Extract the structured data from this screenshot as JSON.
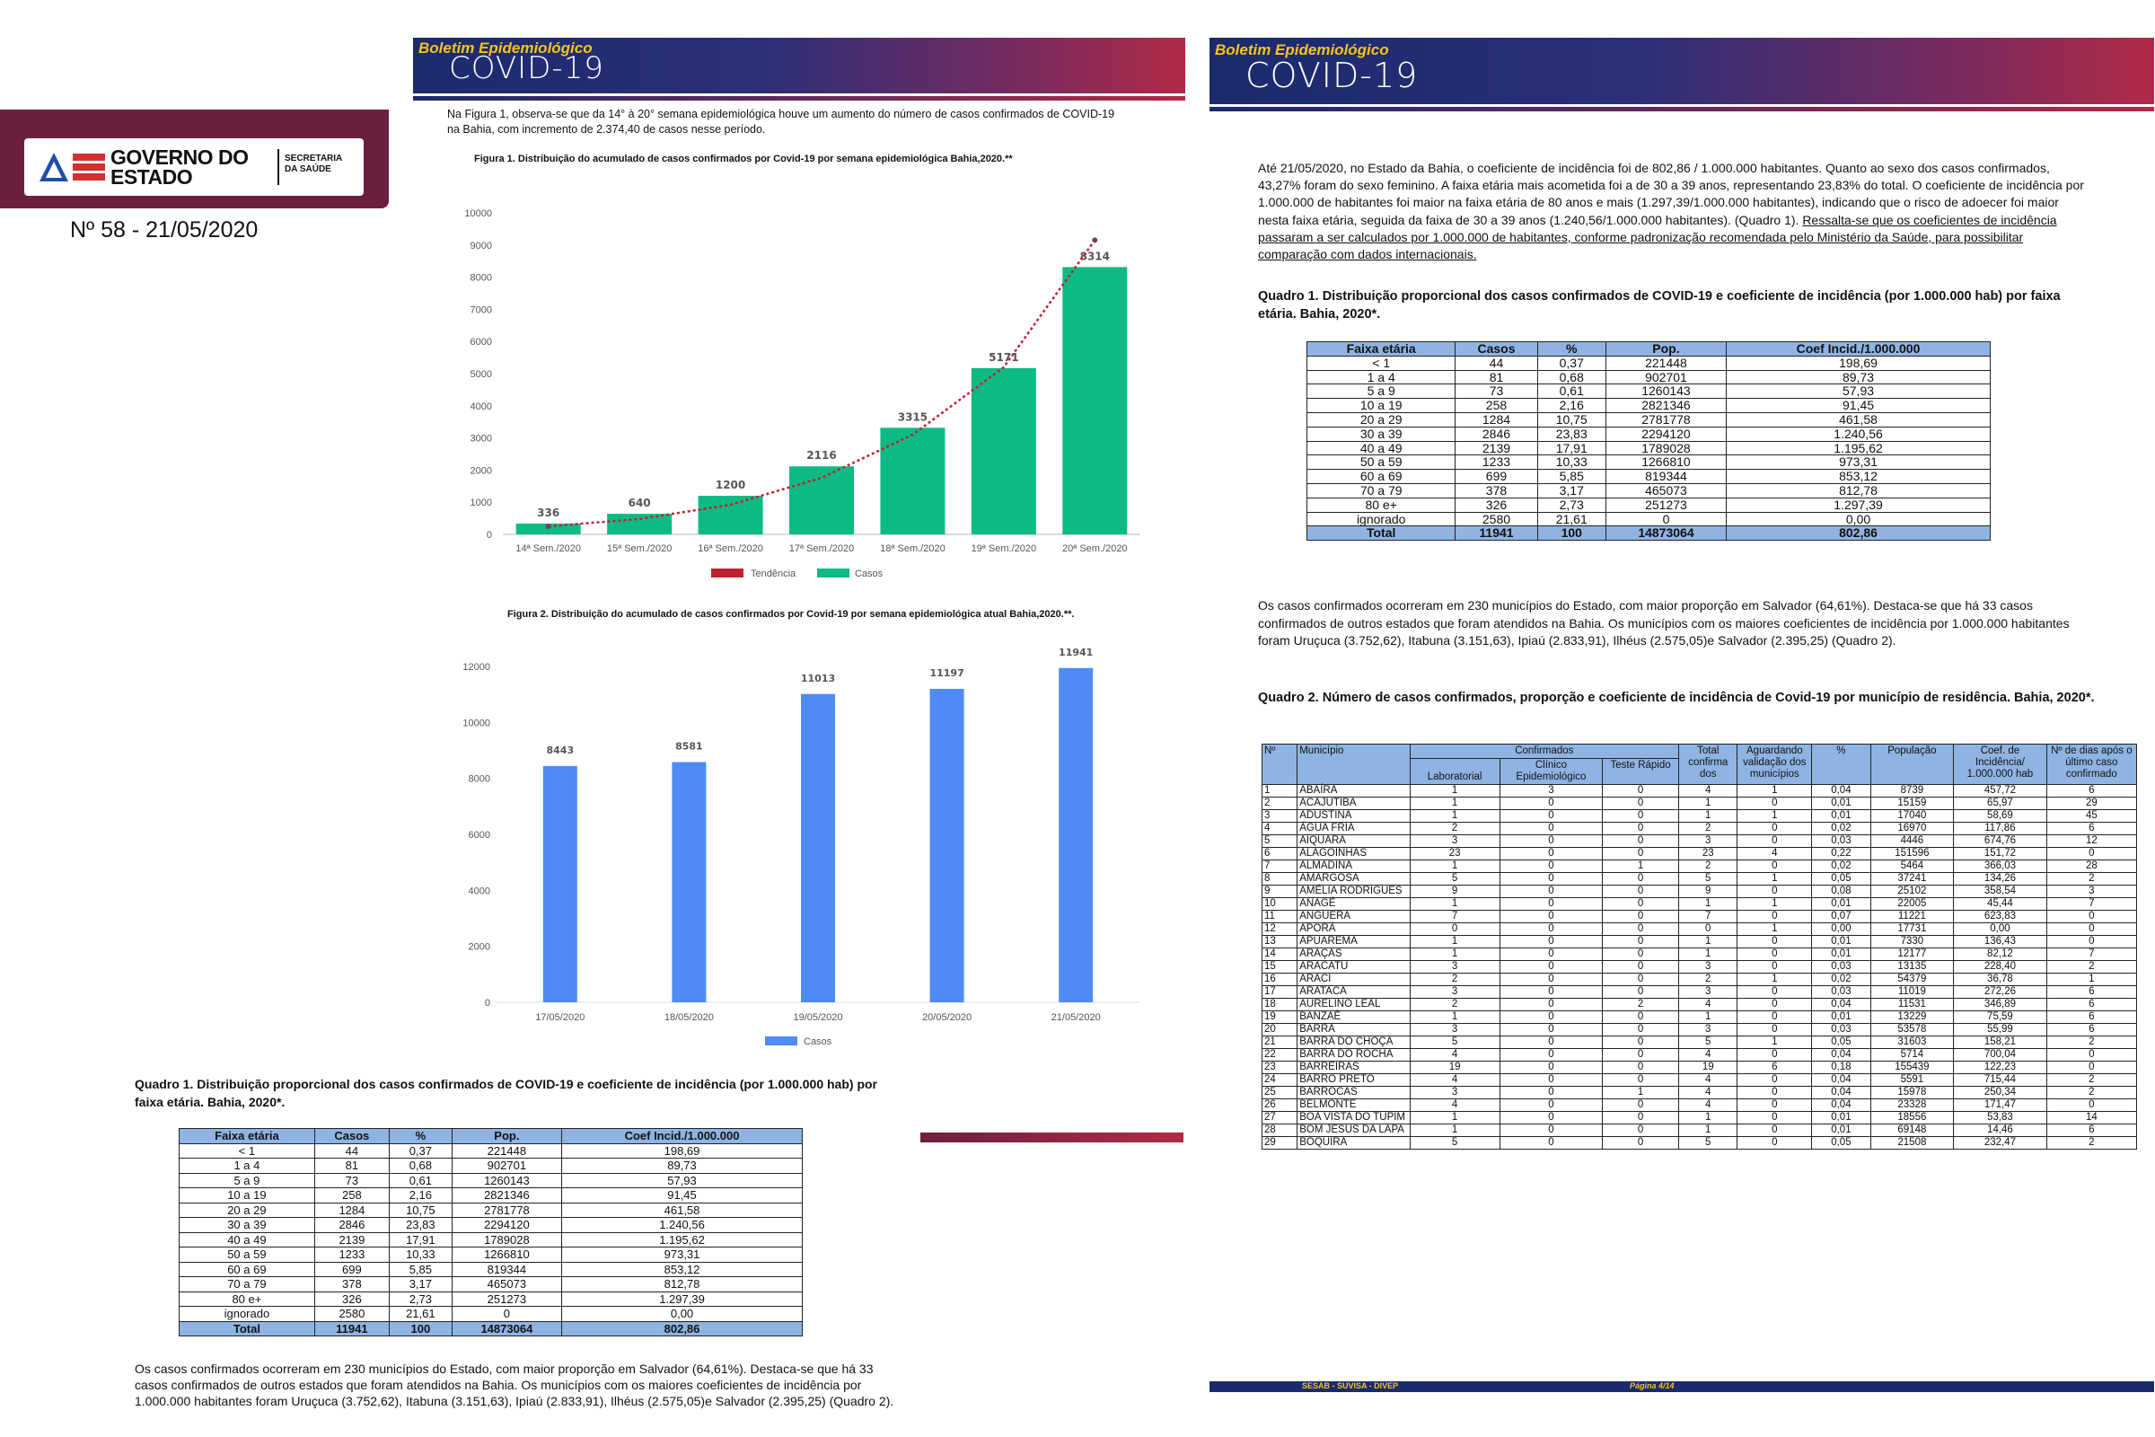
{
  "cover": {
    "logo_main": "GOVERNO DO ESTADO",
    "logo_sub": "SECRETARIA DA SAÚDE",
    "edition": "Nº 58 - 21/05/2020"
  },
  "banner": {
    "small": "Boletim Epidemiológico",
    "big": "COVID-19"
  },
  "page3": {
    "intro": "Na Figura 1, observa-se que da 14° à  20°  semana epidemiológica houve um aumento do número de casos confirmados de COVID-19 na Bahia, com incremento de 2.374,40 de casos nesse período.",
    "fig1_caption": "Figura 1. Distribuição do acumulado de casos confirmados por Covid-19 por semana epidemiológica Bahia,2020.**",
    "fig2_caption": "Figura 2. Distribuição do acumulado de casos confirmados por Covid-19 por semana epidemiológica atual Bahia,2020.**.",
    "q1_title": "Quadro 1. Distribuição proporcional dos casos confirmados de COVID-19 e coeficiente de incidência (por 1.000.000 hab) por faixa etária. Bahia, 2020*.",
    "after_table": "Os casos confirmados ocorreram em 230 municípios do Estado, com maior proporção em Salvador (64,61%). Destaca-se que há 33 casos confirmados de outros estados que foram atendidos na Bahia. Os municípios com os maiores coeficientes de incidência por 1.000.000 habitantes foram Uruçuca (3.752,62), Itabuna (3.151,63), Ipiaú (2.833,91), Ilhéus (2.575,05)e Salvador (2.395,25) (Quadro 2)."
  },
  "page4": {
    "intro_plain": " Até 21/05/2020, no Estado da Bahia, o coeficiente de incidência foi de 802,86 / 1.000.000 habitantes. Quanto ao sexo dos casos confirmados, 43,27% foram do sexo feminino. A faixa etária mais acometida foi a de 30 a 39 anos, representando 23,83% do total. O coeficiente de incidência por 1.000.000 de habitantes foi maior na faixa etária de 80 anos e mais  (1.297,39/1.000.000 habitantes), indicando que o risco de adoecer foi maior nesta faixa etária, seguida da faixa de 30 a 39 anos (1.240,56/1.000.000 habitantes). (Quadro 1). ",
    "intro_underlined": "Ressalta-se que os coeficientes de incidência passaram a ser calculados por 1.000.000 de habitantes, conforme padronização recomendada pelo Ministério da Saúde, para possibilitar comparação com dados internacionais.",
    "q1_title": "Quadro 1. Distribuição proporcional dos casos confirmados de COVID-19 e coeficiente de incidência (por 1.000.000 hab) por faixa etária. Bahia, 2020*.",
    "after_table": "Os casos confirmados ocorreram em 230 municípios do Estado, com maior proporção em Salvador (64,61%). Destaca-se que há 33 casos confirmados de outros estados que foram atendidos na Bahia. Os municípios com os maiores coeficientes de incidência por 1.000.000 habitantes foram Uruçuca (3.752,62), Itabuna (3.151,63), Ipiaú (2.833,91), Ilhéus (2.575,05)e Salvador (2.395,25) (Quadro 2).",
    "q2_title": "Quadro 2. Número de casos confirmados, proporção e coeficiente de incidência de Covid-19 por município de residência. Bahia, 2020*.",
    "footer_left": "SESAB - SUVISA - DIVEP",
    "footer_right": "Página 4/14"
  },
  "q1": {
    "headers": [
      "Faixa etária",
      "Casos",
      "%",
      "Pop.",
      "Coef Incid./1.000.000"
    ],
    "rows": [
      [
        "< 1",
        "44",
        "0,37",
        "221448",
        "198,69"
      ],
      [
        "1 a 4",
        "81",
        "0,68",
        "902701",
        "89,73"
      ],
      [
        "5 a 9",
        "73",
        "0,61",
        "1260143",
        "57,93"
      ],
      [
        "10 a 19",
        "258",
        "2,16",
        "2821346",
        "91,45"
      ],
      [
        "20 a 29",
        "1284",
        "10,75",
        "2781778",
        "461,58"
      ],
      [
        "30 a 39",
        "2846",
        "23,83",
        "2294120",
        "1.240,56"
      ],
      [
        "40 a 49",
        "2139",
        "17,91",
        "1789028",
        "1.195,62"
      ],
      [
        "50 a 59",
        "1233",
        "10,33",
        "1266810",
        "973,31"
      ],
      [
        "60 a 69",
        "699",
        "5,85",
        "819344",
        "853,12"
      ],
      [
        "70 a 79",
        "378",
        "3,17",
        "465073",
        "812,78"
      ],
      [
        "80 e+",
        "326",
        "2,73",
        "251273",
        "1.297,39"
      ],
      [
        "ignorado",
        "2580",
        "21,61",
        "0",
        "0,00"
      ]
    ],
    "total": [
      "Total",
      "11941",
      "100",
      "14873064",
      "802,86"
    ]
  },
  "q2": {
    "headers": {
      "n": "Nº",
      "municipio": "Município",
      "confirmados": "Confirmados",
      "laboratorial": "Laboratorial",
      "clinico": "Clínico Epidemiológico",
      "teste": "Teste Rápido",
      "total": "Total confirma dos",
      "aguardando": "Aguardando validação dos municípios",
      "pct": "%",
      "pop": "População",
      "coef": "Coef. de Incidência/ 1.000.000 hab",
      "dias": "Nº de dias após o último caso confirmado"
    },
    "rows": [
      [
        "1",
        "ABAÍRA",
        "1",
        "3",
        "0",
        "4",
        "1",
        "0,04",
        "8739",
        "457,72",
        "6"
      ],
      [
        "2",
        "ACAJUTIBA",
        "1",
        "0",
        "0",
        "1",
        "0",
        "0,01",
        "15159",
        "65,97",
        "29"
      ],
      [
        "3",
        "ADUSTINA",
        "1",
        "0",
        "0",
        "1",
        "1",
        "0,01",
        "17040",
        "58,69",
        "45"
      ],
      [
        "4",
        "ÁGUA FRIA",
        "2",
        "0",
        "0",
        "2",
        "0",
        "0,02",
        "16970",
        "117,86",
        "6"
      ],
      [
        "5",
        "AIQUARA",
        "3",
        "0",
        "0",
        "3",
        "0",
        "0,03",
        "4446",
        "674,76",
        "12"
      ],
      [
        "6",
        "ALAGOINHAS",
        "23",
        "0",
        "0",
        "23",
        "4",
        "0,22",
        "151596",
        "151,72",
        "0"
      ],
      [
        "7",
        "ALMADINA",
        "1",
        "0",
        "1",
        "2",
        "0",
        "0,02",
        "5464",
        "366,03",
        "28"
      ],
      [
        "8",
        "AMARGOSA",
        "5",
        "0",
        "0",
        "5",
        "1",
        "0,05",
        "37241",
        "134,26",
        "2"
      ],
      [
        "9",
        "AMÉLIA RODRIGUES",
        "9",
        "0",
        "0",
        "9",
        "0",
        "0,08",
        "25102",
        "358,54",
        "3"
      ],
      [
        "10",
        "ANAGÉ",
        "1",
        "0",
        "0",
        "1",
        "1",
        "0,01",
        "22005",
        "45,44",
        "7"
      ],
      [
        "11",
        "ANGUERA",
        "7",
        "0",
        "0",
        "7",
        "0",
        "0,07",
        "11221",
        "623,83",
        "0"
      ],
      [
        "12",
        "APORÁ",
        "0",
        "0",
        "0",
        "0",
        "1",
        "0,00",
        "17731",
        "0,00",
        "0"
      ],
      [
        "13",
        "APUAREMA",
        "1",
        "0",
        "0",
        "1",
        "0",
        "0,01",
        "7330",
        "136,43",
        "0"
      ],
      [
        "14",
        "ARAÇAS",
        "1",
        "0",
        "0",
        "1",
        "0",
        "0,01",
        "12177",
        "82,12",
        "7"
      ],
      [
        "15",
        "ARACATU",
        "3",
        "0",
        "0",
        "3",
        "0",
        "0,03",
        "13135",
        "228,40",
        "2"
      ],
      [
        "16",
        "ARACI",
        "2",
        "0",
        "0",
        "2",
        "1",
        "0,02",
        "54379",
        "36,78",
        "1"
      ],
      [
        "17",
        "ARATACA",
        "3",
        "0",
        "0",
        "3",
        "0",
        "0,03",
        "11019",
        "272,26",
        "6"
      ],
      [
        "18",
        "AURELINO LEAL",
        "2",
        "0",
        "2",
        "4",
        "0",
        "0,04",
        "11531",
        "346,89",
        "6"
      ],
      [
        "19",
        "BANZAÊ",
        "1",
        "0",
        "0",
        "1",
        "0",
        "0,01",
        "13229",
        "75,59",
        "6"
      ],
      [
        "20",
        "BARRA",
        "3",
        "0",
        "0",
        "3",
        "0",
        "0,03",
        "53578",
        "55,99",
        "6"
      ],
      [
        "21",
        "BARRA DO CHOÇA",
        "5",
        "0",
        "0",
        "5",
        "1",
        "0,05",
        "31603",
        "158,21",
        "2"
      ],
      [
        "22",
        "BARRA DO ROCHA",
        "4",
        "0",
        "0",
        "4",
        "0",
        "0,04",
        "5714",
        "700,04",
        "0"
      ],
      [
        "23",
        "BARREIRAS",
        "19",
        "0",
        "0",
        "19",
        "6",
        "0,18",
        "155439",
        "122,23",
        "0"
      ],
      [
        "24",
        "BARRO PRETO",
        "4",
        "0",
        "0",
        "4",
        "0",
        "0,04",
        "5591",
        "715,44",
        "2"
      ],
      [
        "25",
        "BARROCAS",
        "3",
        "0",
        "1",
        "4",
        "0",
        "0,04",
        "15978",
        "250,34",
        "2"
      ],
      [
        "26",
        "BELMONTE",
        "4",
        "0",
        "0",
        "4",
        "0",
        "0,04",
        "23328",
        "171,47",
        "0"
      ],
      [
        "27",
        "BOA VISTA DO TUPIM",
        "1",
        "0",
        "0",
        "1",
        "0",
        "0,01",
        "18556",
        "53,83",
        "14"
      ],
      [
        "28",
        "BOM JESUS DA LAPA",
        "1",
        "0",
        "0",
        "1",
        "0",
        "0,01",
        "69148",
        "14,46",
        "6"
      ],
      [
        "29",
        "BOQUIRA",
        "5",
        "0",
        "0",
        "5",
        "0",
        "0,05",
        "21508",
        "232,47",
        "2"
      ]
    ]
  },
  "colors": {
    "green": "#0dba84",
    "blue": "#4e8bf4",
    "trend": "#c0202f",
    "header_blue": "#8fb4e3"
  },
  "chart_data": [
    {
      "type": "bar",
      "categories": [
        "14ª Sem./2020",
        "15ª Sem./2020",
        "16ª Sem./2020",
        "17ª Sem./2020",
        "18ª Sem./2020",
        "19ª Sem./2020",
        "20ª Sem./2020"
      ],
      "series": [
        {
          "name": "Casos",
          "values": [
            336,
            640,
            1200,
            2116,
            3315,
            5171,
            8314
          ]
        }
      ],
      "trend_name": "Tendência",
      "trend_values": [
        250,
        480,
        920,
        1760,
        3100,
        5200,
        9150
      ],
      "ylim": [
        0,
        10000
      ],
      "yticks": [
        0,
        1000,
        2000,
        3000,
        4000,
        5000,
        6000,
        7000,
        8000,
        9000,
        10000
      ],
      "legend": "bottom",
      "grid": false
    },
    {
      "type": "bar",
      "categories": [
        "17/05/2020",
        "18/05/2020",
        "19/05/2020",
        "20/05/2020",
        "21/05/2020"
      ],
      "series": [
        {
          "name": "Casos",
          "values": [
            8443,
            8581,
            11013,
            11197,
            11941
          ]
        }
      ],
      "ylim": [
        0,
        12000
      ],
      "yticks": [
        0,
        2000,
        4000,
        6000,
        8000,
        10000,
        12000
      ],
      "legend": "bottom",
      "grid": false
    }
  ]
}
